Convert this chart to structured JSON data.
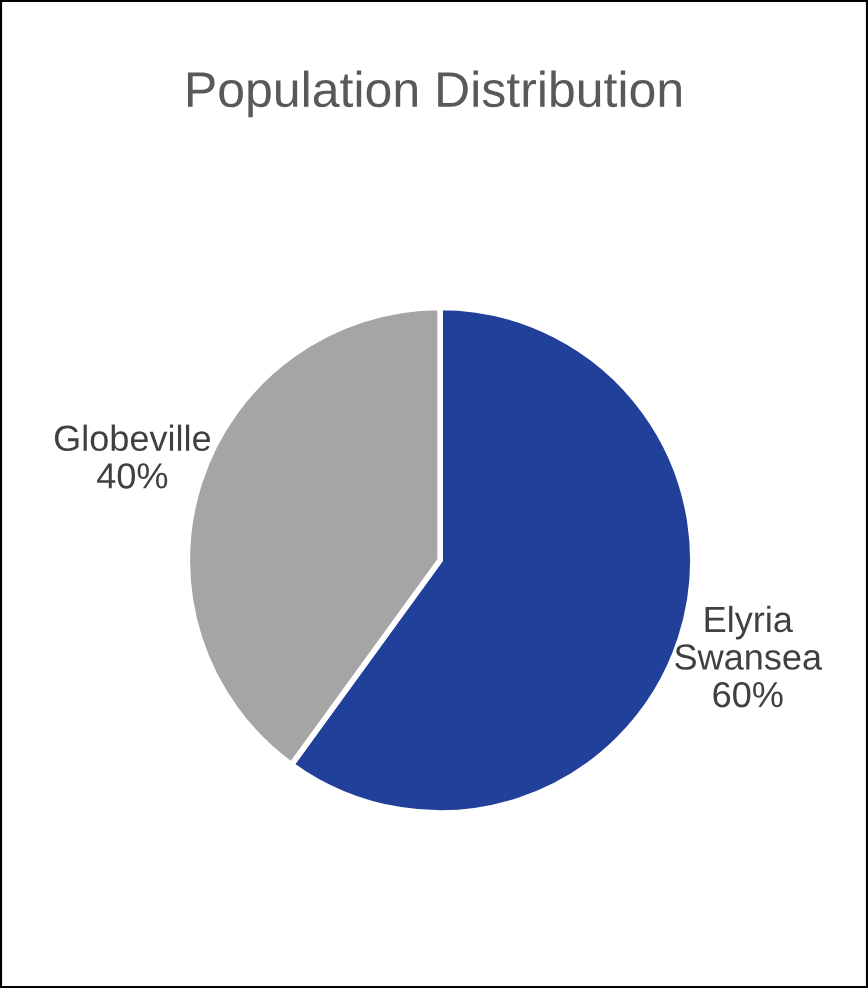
{
  "chart_data": {
    "type": "pie",
    "title": "Population Distribution",
    "categories": [
      "Elyria Swansea",
      "Globeville"
    ],
    "values": [
      60,
      40
    ],
    "value_labels": [
      "60%",
      "40%"
    ],
    "colors": [
      "#21409a",
      "#a5a5a5"
    ],
    "legend": false
  }
}
